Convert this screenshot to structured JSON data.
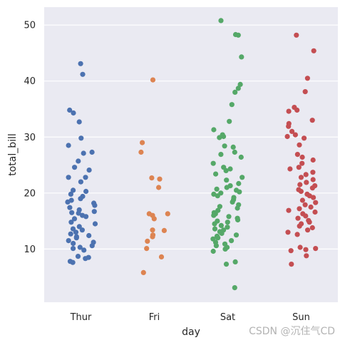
{
  "chart_data": {
    "type": "scatter",
    "subtype": "strip",
    "xlabel": "day",
    "ylabel": "total_bill",
    "categories": [
      "Thur",
      "Fri",
      "Sat",
      "Sun"
    ],
    "ylim": [
      0.5,
      53.2
    ],
    "yticks": [
      10,
      20,
      30,
      40,
      50
    ],
    "grid": true,
    "background": "#eaeaf2",
    "series": [
      {
        "category": "Thur",
        "color": "#4c72b0",
        "values": [
          43.1,
          41.2,
          34.8,
          34.3,
          32.7,
          29.8,
          28.5,
          27.3,
          27.1,
          25.7,
          24.6,
          24.1,
          22.8,
          22.8,
          22.0,
          20.5,
          20.3,
          19.8,
          19.4,
          19.0,
          18.7,
          18.4,
          18.2,
          17.8,
          17.4,
          17.0,
          16.7,
          16.5,
          16.4,
          16.0,
          15.8,
          15.4,
          14.8,
          14.5,
          14.0,
          13.6,
          13.4,
          13.0,
          12.7,
          12.4,
          12.2,
          12.0,
          11.5,
          11.2,
          11.0,
          10.6,
          10.3,
          10.1,
          9.8,
          8.7,
          8.5,
          8.3,
          7.8,
          7.6
        ]
      },
      {
        "category": "Fri",
        "color": "#dd8452",
        "values": [
          40.2,
          29.0,
          27.3,
          22.7,
          22.5,
          21.0,
          16.3,
          16.3,
          16.0,
          15.4,
          13.4,
          13.3,
          12.5,
          12.2,
          11.4,
          10.1,
          8.6,
          5.8
        ]
      },
      {
        "category": "Sat",
        "color": "#55a868",
        "values": [
          50.8,
          48.3,
          48.2,
          44.3,
          39.4,
          38.7,
          38.0,
          35.8,
          32.8,
          31.3,
          30.4,
          30.1,
          29.9,
          28.4,
          28.2,
          27.3,
          26.9,
          26.4,
          25.3,
          24.6,
          24.3,
          24.0,
          23.4,
          22.8,
          22.3,
          21.7,
          21.3,
          21.0,
          20.7,
          20.5,
          20.2,
          20.0,
          19.8,
          19.5,
          19.2,
          18.8,
          18.4,
          17.9,
          17.6,
          17.3,
          16.9,
          16.5,
          16.3,
          16.0,
          15.8,
          15.5,
          15.2,
          15.0,
          14.8,
          14.5,
          14.2,
          13.9,
          13.6,
          13.4,
          13.1,
          12.8,
          12.5,
          12.3,
          12.0,
          11.8,
          11.5,
          11.2,
          10.9,
          10.6,
          10.3,
          10.0,
          9.6,
          7.7,
          7.3,
          3.1
        ]
      },
      {
        "category": "Sun",
        "color": "#c44e52",
        "values": [
          48.2,
          45.4,
          40.5,
          38.1,
          35.3,
          34.8,
          34.6,
          33.0,
          32.4,
          31.9,
          31.0,
          30.4,
          30.1,
          29.8,
          28.6,
          26.9,
          26.4,
          25.9,
          25.3,
          24.6,
          24.3,
          23.7,
          23.3,
          22.8,
          22.4,
          21.9,
          21.5,
          21.3,
          20.9,
          20.6,
          20.3,
          19.8,
          19.5,
          19.2,
          18.7,
          18.3,
          17.9,
          17.5,
          17.2,
          16.9,
          16.6,
          16.3,
          15.9,
          15.5,
          15.1,
          14.8,
          14.5,
          14.1,
          13.8,
          13.4,
          13.0,
          12.6,
          10.3,
          10.1,
          9.9,
          9.7,
          8.8,
          7.3
        ]
      }
    ]
  },
  "watermark": "CSDN @沉住气CD"
}
